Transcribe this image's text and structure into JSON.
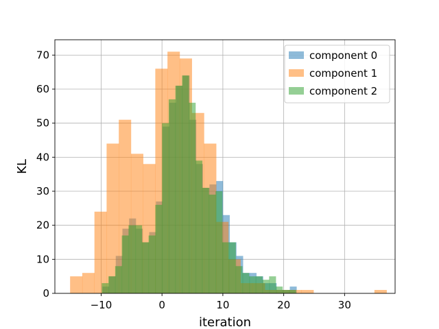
{
  "chart_data": {
    "type": "histogram",
    "title": "",
    "xlabel": "iteration",
    "ylabel": "KL",
    "xlim": [
      -17.6,
      38.3
    ],
    "ylim": [
      0,
      74.5
    ],
    "xticks": [
      -10,
      0,
      10,
      20,
      30
    ],
    "yticks": [
      0,
      10,
      20,
      30,
      40,
      50,
      60,
      70
    ],
    "grid": true,
    "legend_position": "top-right",
    "series": [
      {
        "name": "component 0",
        "color": "#1f77b4",
        "opacity": 0.5,
        "bins": [
          {
            "x0": -9.8,
            "x1": -8.7,
            "y": 2
          },
          {
            "x0": -8.7,
            "x1": -7.6,
            "y": 5
          },
          {
            "x0": -7.6,
            "x1": -6.5,
            "y": 11
          },
          {
            "x0": -6.5,
            "x1": -5.4,
            "y": 19
          },
          {
            "x0": -5.4,
            "x1": -4.3,
            "y": 22
          },
          {
            "x0": -4.3,
            "x1": -3.2,
            "y": 19
          },
          {
            "x0": -3.2,
            "x1": -2.1,
            "y": 15
          },
          {
            "x0": -2.1,
            "x1": -1.0,
            "y": 18
          },
          {
            "x0": -1.0,
            "x1": 0.1,
            "y": 27
          },
          {
            "x0": 0.1,
            "x1": 1.2,
            "y": 49
          },
          {
            "x0": 1.2,
            "x1": 2.3,
            "y": 56
          },
          {
            "x0": 2.3,
            "x1": 3.4,
            "y": 61
          },
          {
            "x0": 3.4,
            "x1": 4.5,
            "y": 64
          },
          {
            "x0": 4.5,
            "x1": 5.6,
            "y": 51
          },
          {
            "x0": 5.6,
            "x1": 6.7,
            "y": 38
          },
          {
            "x0": 6.7,
            "x1": 7.8,
            "y": 31
          },
          {
            "x0": 7.8,
            "x1": 8.9,
            "y": 32
          },
          {
            "x0": 8.9,
            "x1": 10.0,
            "y": 33
          },
          {
            "x0": 10.0,
            "x1": 11.1,
            "y": 23
          },
          {
            "x0": 11.1,
            "x1": 12.2,
            "y": 15
          },
          {
            "x0": 12.2,
            "x1": 13.3,
            "y": 11
          },
          {
            "x0": 13.3,
            "x1": 14.4,
            "y": 6
          },
          {
            "x0": 14.4,
            "x1": 15.5,
            "y": 6
          },
          {
            "x0": 15.5,
            "x1": 16.6,
            "y": 5
          },
          {
            "x0": 16.6,
            "x1": 17.7,
            "y": 3
          },
          {
            "x0": 17.7,
            "x1": 18.8,
            "y": 3
          },
          {
            "x0": 18.8,
            "x1": 19.9,
            "y": 1
          },
          {
            "x0": 19.9,
            "x1": 21.0,
            "y": 1
          },
          {
            "x0": 21.0,
            "x1": 22.1,
            "y": 2
          }
        ]
      },
      {
        "name": "component 1",
        "color": "#ff7f0e",
        "opacity": 0.5,
        "bins": [
          {
            "x0": -15.1,
            "x1": -13.1,
            "y": 5
          },
          {
            "x0": -13.1,
            "x1": -11.1,
            "y": 6
          },
          {
            "x0": -11.1,
            "x1": -9.1,
            "y": 24
          },
          {
            "x0": -9.1,
            "x1": -7.1,
            "y": 44
          },
          {
            "x0": -7.1,
            "x1": -5.1,
            "y": 51
          },
          {
            "x0": -5.1,
            "x1": -3.1,
            "y": 41
          },
          {
            "x0": -3.1,
            "x1": -1.1,
            "y": 38
          },
          {
            "x0": -1.1,
            "x1": 0.9,
            "y": 66
          },
          {
            "x0": 0.9,
            "x1": 2.9,
            "y": 71
          },
          {
            "x0": 2.9,
            "x1": 4.9,
            "y": 69
          },
          {
            "x0": 4.9,
            "x1": 6.9,
            "y": 53
          },
          {
            "x0": 6.9,
            "x1": 8.9,
            "y": 44
          },
          {
            "x0": 8.9,
            "x1": 10.9,
            "y": 21
          },
          {
            "x0": 10.9,
            "x1": 12.9,
            "y": 10
          },
          {
            "x0": 12.9,
            "x1": 14.9,
            "y": 3
          },
          {
            "x0": 14.9,
            "x1": 16.9,
            "y": 3
          },
          {
            "x0": 16.9,
            "x1": 18.9,
            "y": 1
          },
          {
            "x0": 18.9,
            "x1": 20.9,
            "y": 1
          },
          {
            "x0": 20.9,
            "x1": 22.9,
            "y": 1
          },
          {
            "x0": 22.9,
            "x1": 24.9,
            "y": 1
          },
          {
            "x0": 24.9,
            "x1": 26.9,
            "y": 0
          },
          {
            "x0": 26.9,
            "x1": 28.9,
            "y": 0
          },
          {
            "x0": 28.9,
            "x1": 30.9,
            "y": 0
          },
          {
            "x0": 30.9,
            "x1": 32.9,
            "y": 0
          },
          {
            "x0": 32.9,
            "x1": 34.9,
            "y": 0
          },
          {
            "x0": 34.9,
            "x1": 36.9,
            "y": 1
          }
        ]
      },
      {
        "name": "component 2",
        "color": "#2ca02c",
        "opacity": 0.5,
        "bins": [
          {
            "x0": -9.9,
            "x1": -8.8,
            "y": 3
          },
          {
            "x0": -8.8,
            "x1": -7.7,
            "y": 5
          },
          {
            "x0": -7.7,
            "x1": -6.6,
            "y": 8
          },
          {
            "x0": -6.6,
            "x1": -5.5,
            "y": 17
          },
          {
            "x0": -5.5,
            "x1": -4.4,
            "y": 20
          },
          {
            "x0": -4.4,
            "x1": -3.3,
            "y": 20
          },
          {
            "x0": -3.3,
            "x1": -2.2,
            "y": 15
          },
          {
            "x0": -2.2,
            "x1": -1.1,
            "y": 17
          },
          {
            "x0": -1.1,
            "x1": 0.0,
            "y": 26
          },
          {
            "x0": 0.0,
            "x1": 1.1,
            "y": 50
          },
          {
            "x0": 1.1,
            "x1": 2.2,
            "y": 57
          },
          {
            "x0": 2.2,
            "x1": 3.3,
            "y": 61
          },
          {
            "x0": 3.3,
            "x1": 4.4,
            "y": 64
          },
          {
            "x0": 4.4,
            "x1": 5.5,
            "y": 56
          },
          {
            "x0": 5.5,
            "x1": 6.6,
            "y": 39
          },
          {
            "x0": 6.6,
            "x1": 7.7,
            "y": 31
          },
          {
            "x0": 7.7,
            "x1": 8.8,
            "y": 29
          },
          {
            "x0": 8.8,
            "x1": 9.9,
            "y": 30
          },
          {
            "x0": 9.9,
            "x1": 11.0,
            "y": 15
          },
          {
            "x0": 11.0,
            "x1": 12.1,
            "y": 15
          },
          {
            "x0": 12.1,
            "x1": 13.2,
            "y": 8
          },
          {
            "x0": 13.2,
            "x1": 14.3,
            "y": 6
          },
          {
            "x0": 14.3,
            "x1": 15.4,
            "y": 5
          },
          {
            "x0": 15.4,
            "x1": 16.5,
            "y": 5
          },
          {
            "x0": 16.5,
            "x1": 17.6,
            "y": 4
          },
          {
            "x0": 17.6,
            "x1": 18.7,
            "y": 5
          },
          {
            "x0": 18.7,
            "x1": 19.8,
            "y": 2
          },
          {
            "x0": 19.8,
            "x1": 20.9,
            "y": 1
          },
          {
            "x0": 20.9,
            "x1": 22.0,
            "y": 1
          }
        ]
      }
    ]
  }
}
